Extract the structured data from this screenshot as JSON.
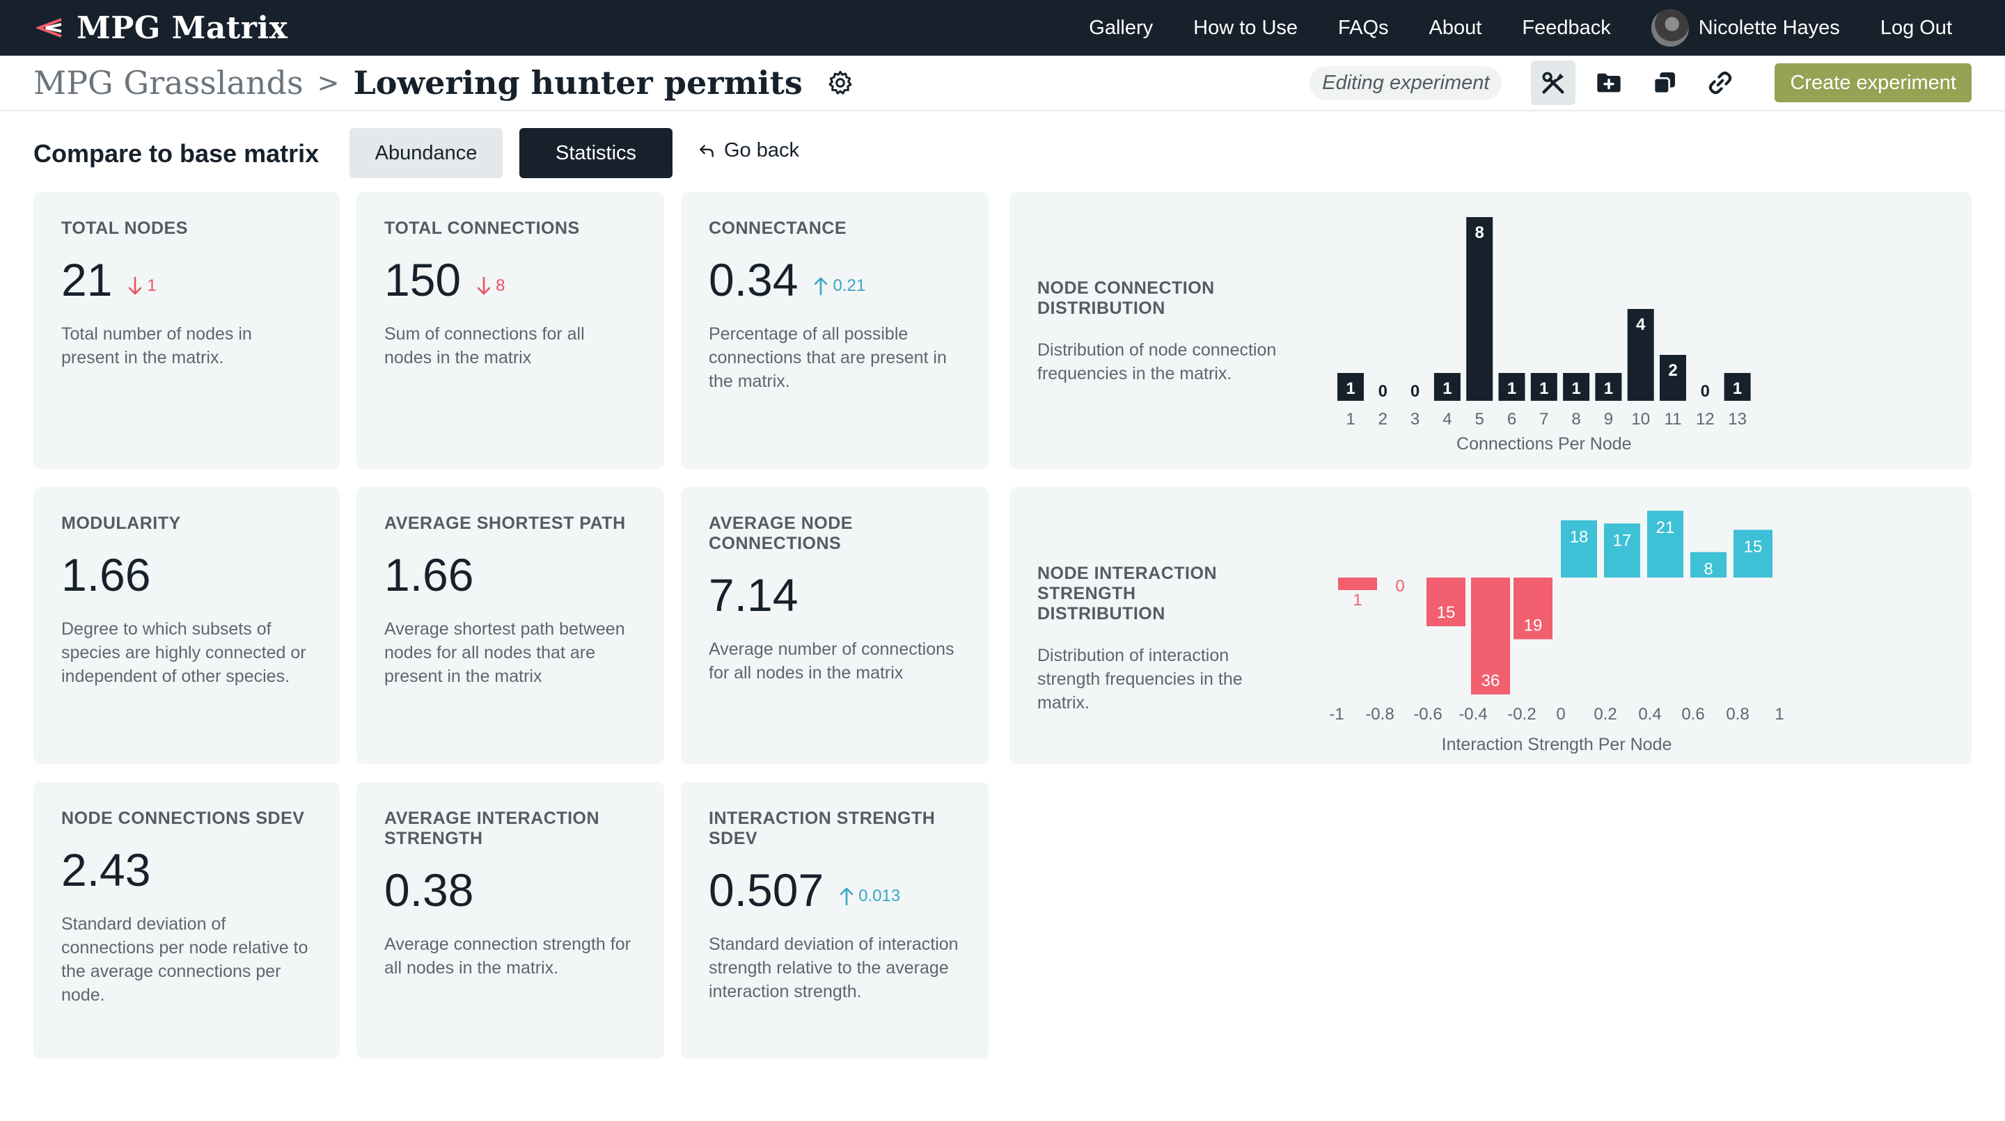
{
  "app": {
    "name": "MPG Matrix",
    "nav": [
      "Gallery",
      "How to Use",
      "FAQs",
      "About",
      "Feedback"
    ],
    "user_name": "Nicolette Hayes",
    "logout_label": "Log Out"
  },
  "header": {
    "breadcrumb_parent": "MPG Grasslands",
    "breadcrumb_separator": ">",
    "breadcrumb_current": "Lowering hunter permits",
    "editing_label": "Editing experiment",
    "create_label": "Create experiment"
  },
  "compare": {
    "title": "Compare to base matrix",
    "abundance_label": "Abundance",
    "statistics_label": "Statistics",
    "go_back_label": "Go back"
  },
  "colors": {
    "dark": "#17212b",
    "accent_green": "#97a254",
    "positive_blue": "#3ec0d6",
    "negative_red": "#f25f6e"
  },
  "stats": {
    "total_nodes": {
      "label": "TOTAL NODES",
      "value": "21",
      "delta": "1",
      "delta_dir": "down",
      "desc": "Total number of nodes in present in the matrix."
    },
    "total_connections": {
      "label": "TOTAL CONNECTIONS",
      "value": "150",
      "delta": "8",
      "delta_dir": "down",
      "desc": "Sum of connections for all nodes in the matrix"
    },
    "connectance": {
      "label": "CONNECTANCE",
      "value": "0.34",
      "delta": "0.21",
      "delta_dir": "up",
      "desc": "Percentage of all possible connections that are present in the matrix."
    },
    "modularity": {
      "label": "MODULARITY",
      "value": "1.66",
      "desc": "Degree to which subsets of species are highly connected or independent of other species."
    },
    "avg_shortest_path": {
      "label": "AVERAGE SHORTEST PATH",
      "value": "1.66",
      "desc": "Average shortest path between nodes for all nodes that are present in the matrix"
    },
    "avg_node_connections": {
      "label": "AVERAGE NODE CONNECTIONS",
      "value": "7.14",
      "desc": "Average number of connections for all nodes in the matrix"
    },
    "node_connections_sdev": {
      "label": "NODE CONNECTIONS SDEV",
      "value": "2.43",
      "desc": "Standard deviation of connections per node relative to the average connections per node."
    },
    "avg_interaction_strength": {
      "label": "AVERAGE INTERACTION STRENGTH",
      "value": "0.38",
      "desc": "Average connection strength for all nodes in the matrix."
    },
    "interaction_strength_sdev": {
      "label": "INTERACTION STRENGTH SDEV",
      "value": "0.507",
      "delta": "0.013",
      "delta_dir": "up",
      "desc": "Standard deviation of interaction strength relative to the average interaction strength."
    }
  },
  "node_connection_card": {
    "label": "NODE CONNECTION DISTRIBUTION",
    "desc": "Distribution of node connection frequencies in the matrix."
  },
  "interaction_strength_card": {
    "label": "NODE INTERACTION STRENGTH DISTRIBUTION",
    "desc": "Distribution of interaction strength frequencies in the matrix."
  },
  "chart_data": [
    {
      "type": "bar",
      "title": "",
      "xlabel": "Connections Per Node",
      "ylabel": "",
      "categories": [
        "1",
        "2",
        "3",
        "4",
        "5",
        "6",
        "7",
        "8",
        "9",
        "10",
        "11",
        "12",
        "13"
      ],
      "values": [
        1,
        0,
        0,
        1,
        8,
        1,
        1,
        1,
        1,
        4,
        2,
        0,
        1
      ],
      "ylim": [
        0,
        8
      ],
      "grid": false,
      "colors": {
        "bar": "#17212b"
      }
    },
    {
      "type": "bar",
      "title": "",
      "xlabel": "Interaction Strength Per Node",
      "ylabel": "",
      "tick_labels": [
        "-1",
        "-0.8",
        "-0.6",
        "-0.4",
        "-0.2",
        "0",
        "0.2",
        "0.4",
        "0.6",
        "0.8",
        "1"
      ],
      "categories": [
        "-1",
        "-0.8",
        "-0.6",
        "-0.4",
        "-0.2",
        "0",
        "0.2",
        "0.4",
        "0.6",
        "0.8"
      ],
      "values": [
        -1,
        0,
        -15,
        -36,
        -19,
        18,
        17,
        21,
        8,
        15
      ],
      "ylim": [
        -36,
        21
      ],
      "grid": false,
      "colors": {
        "negative": "#f25f6e",
        "positive": "#3ec0d6"
      }
    }
  ]
}
